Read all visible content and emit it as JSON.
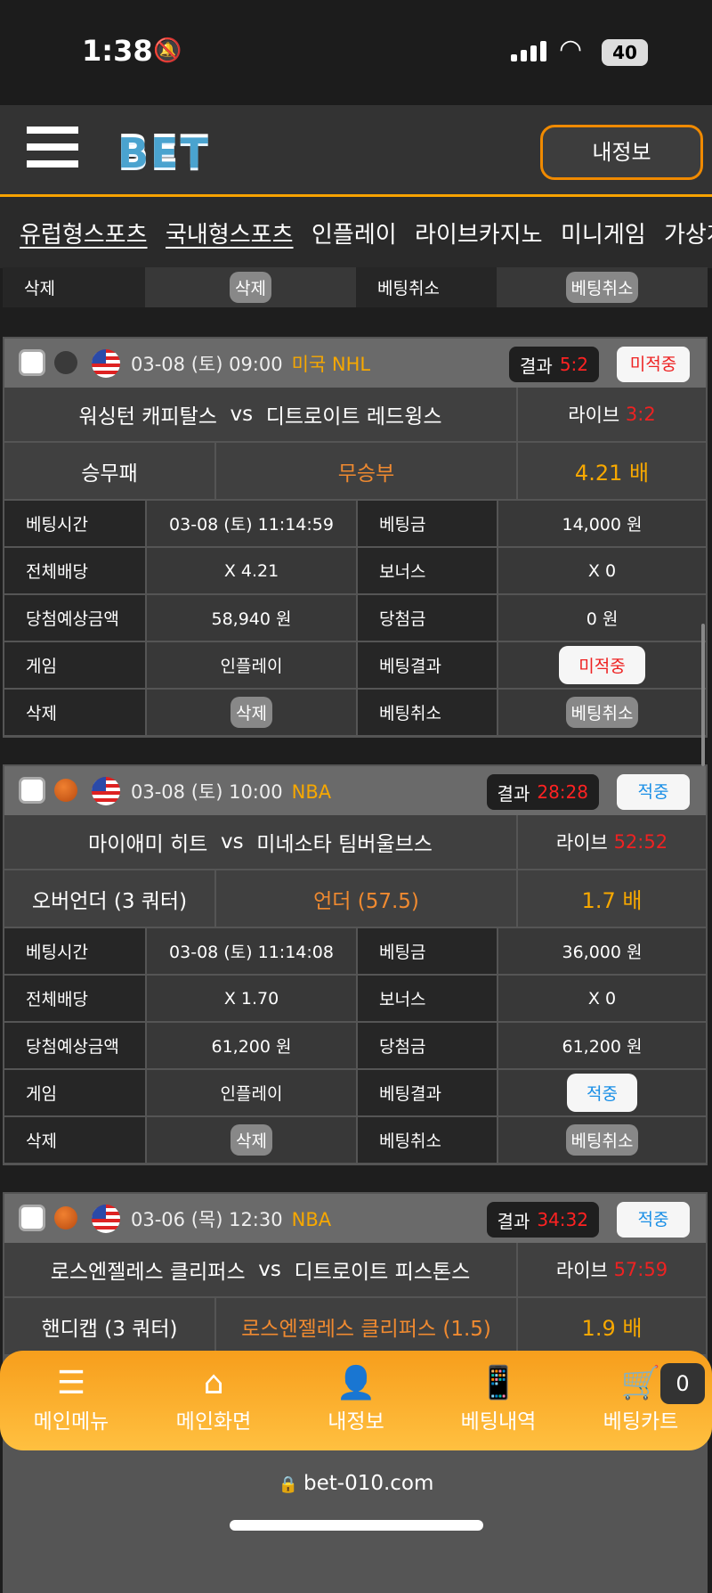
{
  "status_bar": {
    "time": "1:38",
    "battery": "40",
    "icons": [
      "bell-slash-icon",
      "signal-icon",
      "wifi-icon",
      "battery-icon"
    ]
  },
  "header": {
    "logo": "BET",
    "my_info_button": "내정보",
    "menu_icon": "hamburger-icon"
  },
  "nav": {
    "items": [
      "유럽형스포츠",
      "국내형스포츠",
      "인플레이",
      "라이브카지노",
      "미니게임",
      "가상게"
    ]
  },
  "partial_row": {
    "delete_label": "삭제",
    "delete_btn": "삭제",
    "cancel_label": "베팅취소",
    "cancel_btn": "베팅취소"
  },
  "labels": {
    "bet_time": "베팅시간",
    "bet_amount": "베팅금",
    "total_odds": "전체배당",
    "bonus": "보너스",
    "expected": "당첨예상금액",
    "win_amount": "당첨금",
    "game": "게임",
    "bet_result": "베팅결과",
    "delete": "삭제",
    "cancel": "베팅취소",
    "result": "결과",
    "live": "라이브",
    "vs": "vs"
  },
  "colors": {
    "accent": "#f7a200",
    "lose": "#e22222",
    "win": "#1a8fe6",
    "pick": "#f08a30"
  },
  "bets": [
    {
      "sport": "hockey",
      "date": "03-08 (토) 09:00",
      "league": "미국 NHL",
      "result_score": "5:2",
      "status": "미적중",
      "status_type": "lose",
      "home": "워싱턴 캐피탈스",
      "away": "디트로이트 레드윙스",
      "live_score": "3:2",
      "market": "승무패",
      "pick": "무승부",
      "odds": "4.21 배",
      "bet_time": "03-08 (토) 11:14:59",
      "bet_amount": "14,000 원",
      "total_odds": "X 4.21",
      "bonus": "X 0",
      "expected": "58,940 원",
      "win_amount": "0 원",
      "game": "인플레이",
      "delete_btn": "삭제",
      "cancel_btn": "베팅취소"
    },
    {
      "sport": "basketball",
      "date": "03-08 (토) 10:00",
      "league": "NBA",
      "result_score": "28:28",
      "status": "적중",
      "status_type": "win",
      "home": "마이애미 히트",
      "away": "미네소타 팀버울브스",
      "live_score": "52:52",
      "market": "오버언더 (3 쿼터)",
      "pick": "언더 (57.5)",
      "odds": "1.7 배",
      "bet_time": "03-08 (토) 11:14:08",
      "bet_amount": "36,000 원",
      "total_odds": "X 1.70",
      "bonus": "X 0",
      "expected": "61,200 원",
      "win_amount": "61,200 원",
      "game": "인플레이",
      "delete_btn": "삭제",
      "cancel_btn": "베팅취소"
    },
    {
      "sport": "basketball",
      "date": "03-06 (목) 12:30",
      "league": "NBA",
      "result_score": "34:32",
      "status": "적중",
      "status_type": "win",
      "home": "로스엔젤레스 클리퍼스",
      "away": "디트로이트 피스톤스",
      "live_score": "57:59",
      "market": "핸디캡 (3 쿼터)",
      "pick": "로스엔젤레스 클리퍼스 (1.5)",
      "odds": "1.9 배"
    }
  ],
  "bottom_nav": {
    "items": [
      {
        "label": "메인메뉴",
        "icon": "menu-icon"
      },
      {
        "label": "메인화면",
        "icon": "home-icon"
      },
      {
        "label": "내정보",
        "icon": "user-my-icon"
      },
      {
        "label": "베팅내역",
        "icon": "bet-history-icon"
      },
      {
        "label": "베팅카트",
        "icon": "cart-icon"
      }
    ],
    "cart_count": "0"
  },
  "browser": {
    "url": "bet-010.com"
  }
}
